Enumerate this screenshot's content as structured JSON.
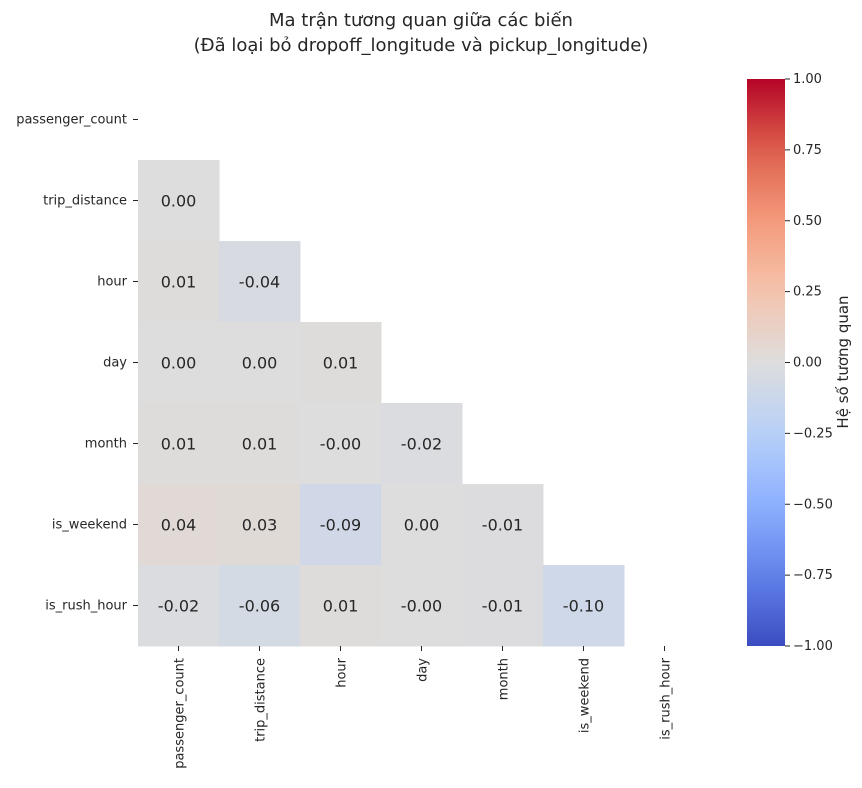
{
  "chart_data": {
    "type": "heatmap",
    "title": "Ma trận tương quan giữa các biến",
    "subtitle": "(Đã loại bỏ dropoff_longitude và pickup_longitude)",
    "variables": [
      "passenger_count",
      "trip_distance",
      "hour",
      "day",
      "month",
      "is_weekend",
      "is_rush_hour"
    ],
    "mask": "upper-triangle-and-diagonal",
    "matrix": [
      [
        null,
        null,
        null,
        null,
        null,
        null,
        null
      ],
      [
        0.0,
        null,
        null,
        null,
        null,
        null,
        null
      ],
      [
        0.01,
        -0.04,
        null,
        null,
        null,
        null,
        null
      ],
      [
        0.0,
        0.0,
        0.01,
        null,
        null,
        null,
        null
      ],
      [
        0.01,
        0.01,
        -0.0,
        -0.02,
        null,
        null,
        null
      ],
      [
        0.04,
        0.03,
        -0.09,
        0.0,
        -0.01,
        null,
        null
      ],
      [
        -0.02,
        -0.06,
        0.01,
        -0.0,
        -0.01,
        -0.1,
        null
      ]
    ],
    "annotations": [
      [
        null,
        null,
        null,
        null,
        null,
        null,
        null
      ],
      [
        "0.00",
        null,
        null,
        null,
        null,
        null,
        null
      ],
      [
        "0.01",
        "-0.04",
        null,
        null,
        null,
        null,
        null
      ],
      [
        "0.00",
        "0.00",
        "0.01",
        null,
        null,
        null,
        null
      ],
      [
        "0.01",
        "0.01",
        "-0.00",
        "-0.02",
        null,
        null,
        null
      ],
      [
        "0.04",
        "0.03",
        "-0.09",
        "0.00",
        "-0.01",
        null,
        null
      ],
      [
        "-0.02",
        "-0.06",
        "0.01",
        "-0.00",
        "-0.01",
        "-0.10",
        null
      ]
    ],
    "colormap": "coolwarm",
    "vmin": -1.0,
    "vmax": 1.0,
    "colorbar": {
      "label": "Hệ số tương quan",
      "ticks": [
        "1.00",
        "0.75",
        "0.50",
        "0.25",
        "0.00",
        "−0.25",
        "−0.50",
        "−0.75",
        "−1.00"
      ],
      "tick_values": [
        1.0,
        0.75,
        0.5,
        0.25,
        0.0,
        -0.25,
        -0.5,
        -0.75,
        -1.0
      ]
    }
  }
}
